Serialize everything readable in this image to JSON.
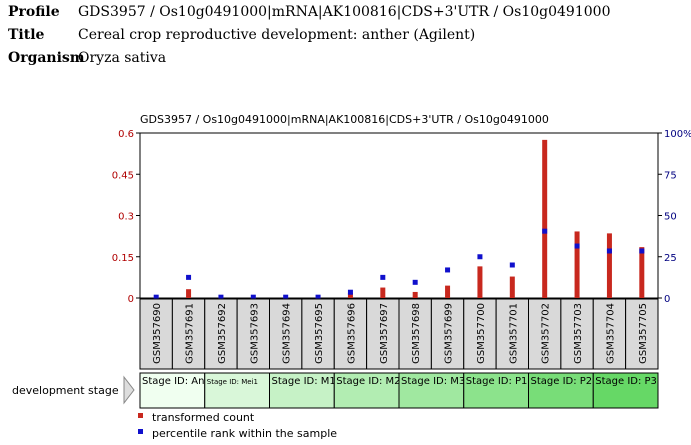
{
  "header": {
    "profile_label": "Profile",
    "profile_value": "GDS3957 / Os10g0491000|mRNA|AK100816|CDS+3'UTR / Os10g0491000",
    "title_label": "Title",
    "title_value": "Cereal crop reproductive development: anther (Agilent)",
    "organism_label": "Organism",
    "organism_value": "Oryza sativa"
  },
  "colors": {
    "count": "#c8281e",
    "percentile": "#1010cc",
    "left_axis": "#b00000",
    "right_axis": "#000080"
  },
  "chart_data": {
    "type": "bar",
    "title": "GDS3957 / Os10g0491000|mRNA|AK100816|CDS+3'UTR / Os10g0491000",
    "categories": [
      "GSM357690",
      "GSM357691",
      "GSM357692",
      "GSM357693",
      "GSM357694",
      "GSM357695",
      "GSM357696",
      "GSM357697",
      "GSM357698",
      "GSM357699",
      "GSM357700",
      "GSM357701",
      "GSM357702",
      "GSM357703",
      "GSM357704",
      "GSM357705"
    ],
    "series": [
      {
        "name": "transformed count",
        "axis": "left",
        "values": [
          0.002,
          0.032,
          0.001,
          0.001,
          0.001,
          0.001,
          0.018,
          0.038,
          0.022,
          0.045,
          0.115,
          0.078,
          0.575,
          0.242,
          0.235,
          0.185
        ]
      },
      {
        "name": "percentile rank within the sample",
        "axis": "right",
        "values": [
          0.5,
          12.5,
          0.5,
          0.5,
          0.5,
          0.5,
          3.5,
          12.5,
          9.5,
          17,
          25,
          20,
          40.5,
          31.5,
          28.5,
          28.5
        ]
      }
    ],
    "y_left": {
      "ticks": [
        "0",
        "0.15",
        "0.3",
        "0.45",
        "0.6"
      ],
      "min": 0,
      "max": 0.6
    },
    "y_right": {
      "ticks": [
        "0",
        "25",
        "50",
        "75",
        "100%"
      ],
      "min": 0,
      "max": 100
    },
    "factor_label": "development stage",
    "groups": [
      {
        "label": "Stage ID: An1",
        "start": 0,
        "count": 2,
        "color": "#f0fff0",
        "small": false
      },
      {
        "label": "Stage ID: Mei1",
        "start": 2,
        "count": 2,
        "color": "#d9f7d9",
        "small": true
      },
      {
        "label": "Stage ID: M1",
        "start": 4,
        "count": 2,
        "color": "#c6f2c6",
        "small": false
      },
      {
        "label": "Stage ID: M2",
        "start": 6,
        "count": 2,
        "color": "#b2edb2",
        "small": false
      },
      {
        "label": "Stage ID: M3",
        "start": 8,
        "count": 2,
        "color": "#a0e8a0",
        "small": false
      },
      {
        "label": "Stage ID: P1",
        "start": 10,
        "count": 2,
        "color": "#8ce38c",
        "small": false
      },
      {
        "label": "Stage ID: P2",
        "start": 12,
        "count": 2,
        "color": "#78dd78",
        "small": false
      },
      {
        "label": "Stage ID: P3",
        "start": 14,
        "count": 2,
        "color": "#66d866",
        "small": false
      }
    ],
    "legend": [
      "transformed count",
      "percentile rank within the sample"
    ],
    "grid": false
  }
}
